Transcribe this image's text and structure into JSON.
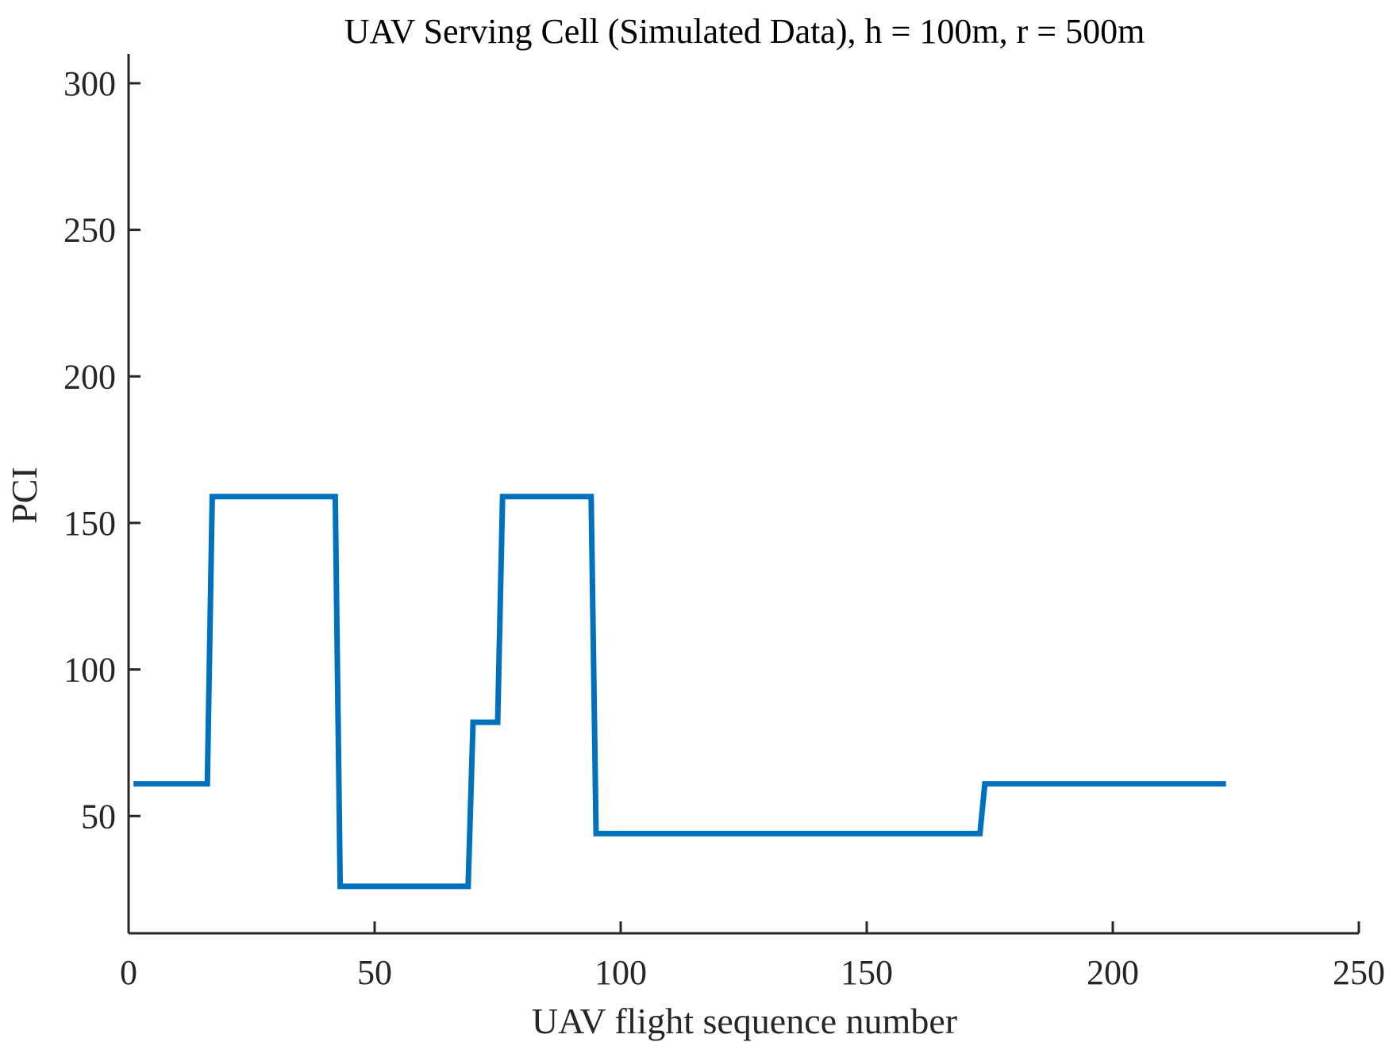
{
  "chart_data": {
    "type": "line",
    "title": "UAV Serving Cell (Simulated Data), h = 100m, r = 500m",
    "xlabel": "UAV flight sequence number",
    "ylabel": "PCI",
    "xlim": [
      0,
      250
    ],
    "ylim": [
      10,
      310
    ],
    "xticks": [
      0,
      50,
      100,
      150,
      200,
      250
    ],
    "yticks": [
      50,
      100,
      150,
      200,
      250,
      300
    ],
    "xtick_labels": [
      "0",
      "50",
      "100",
      "150",
      "200",
      "250"
    ],
    "ytick_labels": [
      "50",
      "100",
      "150",
      "200",
      "250",
      "300"
    ],
    "grid": false,
    "legend": "none",
    "series": [
      {
        "color": "#0072BD",
        "x": [
          1,
          16,
          17,
          42,
          43,
          69,
          70,
          75,
          76,
          94,
          95,
          173,
          174,
          223
        ],
        "y": [
          61,
          61,
          159,
          159,
          26,
          26,
          82,
          82,
          159,
          159,
          44,
          44,
          61,
          61
        ]
      }
    ]
  }
}
